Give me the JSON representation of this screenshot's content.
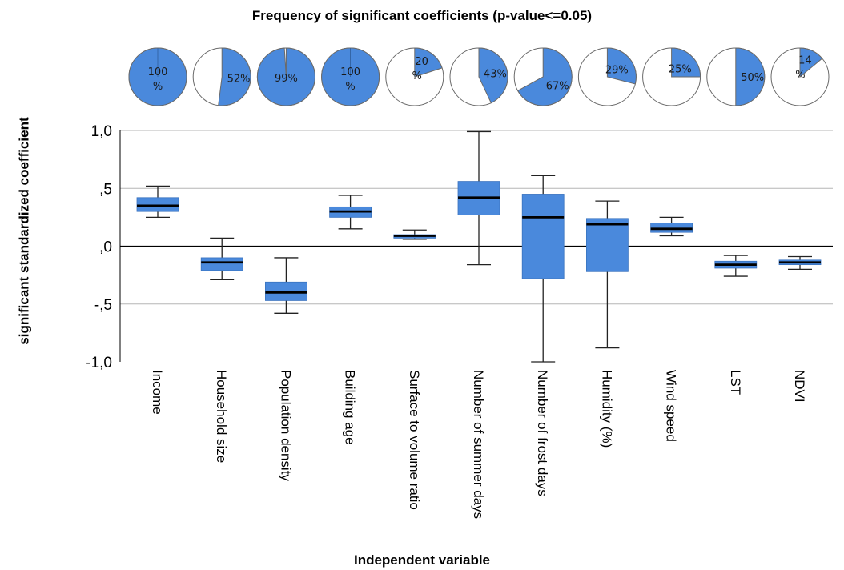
{
  "chart_data": {
    "type": "box",
    "title": "Frequency of significant coefficients (p-value<=0.05)",
    "xlabel": "Independent variable",
    "ylabel": "significant standardized coefficient",
    "ylim": [
      -1.0,
      1.0
    ],
    "yticks": [
      1.0,
      0.5,
      0.0,
      -0.5,
      -1.0
    ],
    "ytick_labels": [
      "1,0",
      ",5",
      ",0",
      "-,5",
      "-1,0"
    ],
    "reference_line": 0.0,
    "box_color": "#4a89dc",
    "pie_color": "#4a89dc",
    "categories": [
      "Income",
      "Household size",
      "Population density",
      "Building age",
      "Surface to volume ratio",
      "Number of summer days",
      "Number of frost days",
      "Humidity (%)",
      "Wind speed",
      "LST",
      "NDVI"
    ],
    "significant_share": [
      {
        "value": 100,
        "label": "100 %"
      },
      {
        "value": 52,
        "label": "52%"
      },
      {
        "value": 99,
        "label": "99%"
      },
      {
        "value": 100,
        "label": "100 %"
      },
      {
        "value": 20,
        "label": "20 %"
      },
      {
        "value": 43,
        "label": "43%"
      },
      {
        "value": 67,
        "label": "67%"
      },
      {
        "value": 29,
        "label": "29%"
      },
      {
        "value": 25,
        "label": "25%"
      },
      {
        "value": 50,
        "label": "50%"
      },
      {
        "value": 14,
        "label": "14 %"
      }
    ],
    "boxes": [
      {
        "min": 0.25,
        "q1": 0.3,
        "median": 0.35,
        "q3": 0.42,
        "max": 0.52
      },
      {
        "min": -0.29,
        "q1": -0.21,
        "median": -0.14,
        "q3": -0.1,
        "max": 0.07
      },
      {
        "min": -0.58,
        "q1": -0.47,
        "median": -0.4,
        "q3": -0.31,
        "max": -0.1
      },
      {
        "min": 0.15,
        "q1": 0.25,
        "median": 0.3,
        "q3": 0.34,
        "max": 0.44
      },
      {
        "min": 0.06,
        "q1": 0.07,
        "median": 0.09,
        "q3": 0.1,
        "max": 0.14
      },
      {
        "min": -0.16,
        "q1": 0.27,
        "median": 0.42,
        "q3": 0.56,
        "max": 0.99
      },
      {
        "min": -1.0,
        "q1": -0.28,
        "median": 0.25,
        "q3": 0.45,
        "max": 0.61
      },
      {
        "min": -0.88,
        "q1": -0.22,
        "median": 0.19,
        "q3": 0.24,
        "max": 0.39
      },
      {
        "min": 0.09,
        "q1": 0.12,
        "median": 0.15,
        "q3": 0.2,
        "max": 0.25
      },
      {
        "min": -0.26,
        "q1": -0.19,
        "median": -0.16,
        "q3": -0.13,
        "max": -0.08
      },
      {
        "min": -0.2,
        "q1": -0.16,
        "median": -0.14,
        "q3": -0.12,
        "max": -0.09
      }
    ]
  }
}
